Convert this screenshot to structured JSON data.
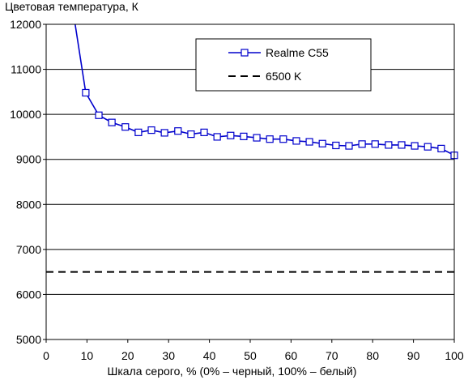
{
  "chart_data": {
    "type": "line",
    "title": "Цветовая температура, К",
    "xlabel": "Шкала серого, % (0% – черный, 100% – белый)",
    "ylabel": "",
    "xlim": [
      0,
      100
    ],
    "ylim": [
      5000,
      12000
    ],
    "x_ticks": [
      0,
      10,
      20,
      30,
      40,
      50,
      60,
      70,
      80,
      90,
      100
    ],
    "y_ticks": [
      5000,
      6000,
      7000,
      8000,
      9000,
      10000,
      11000,
      12000
    ],
    "grid": "horizontal",
    "legend_position": "top-right",
    "series": [
      {
        "name": "Realme C55",
        "color": "#0000cc",
        "marker": "square",
        "x": [
          9.7,
          12.9,
          16.1,
          19.4,
          22.6,
          25.8,
          29.0,
          32.3,
          35.5,
          38.7,
          41.9,
          45.2,
          48.4,
          51.6,
          54.8,
          58.1,
          61.3,
          64.5,
          67.7,
          71.0,
          74.2,
          77.4,
          80.6,
          83.9,
          87.1,
          90.3,
          93.5,
          96.8,
          100
        ],
        "values": [
          10480,
          9980,
          9820,
          9720,
          9600,
          9650,
          9590,
          9630,
          9560,
          9600,
          9500,
          9530,
          9510,
          9480,
          9450,
          9450,
          9410,
          9390,
          9350,
          9310,
          9300,
          9340,
          9340,
          9320,
          9320,
          9300,
          9280,
          9240,
          9090
        ],
        "line_start": {
          "x": 7.1,
          "y": 12000
        }
      },
      {
        "name": "6500 K",
        "color": "#000000",
        "style": "dashed",
        "x": [
          0,
          100
        ],
        "values": [
          6500,
          6500
        ]
      }
    ]
  }
}
